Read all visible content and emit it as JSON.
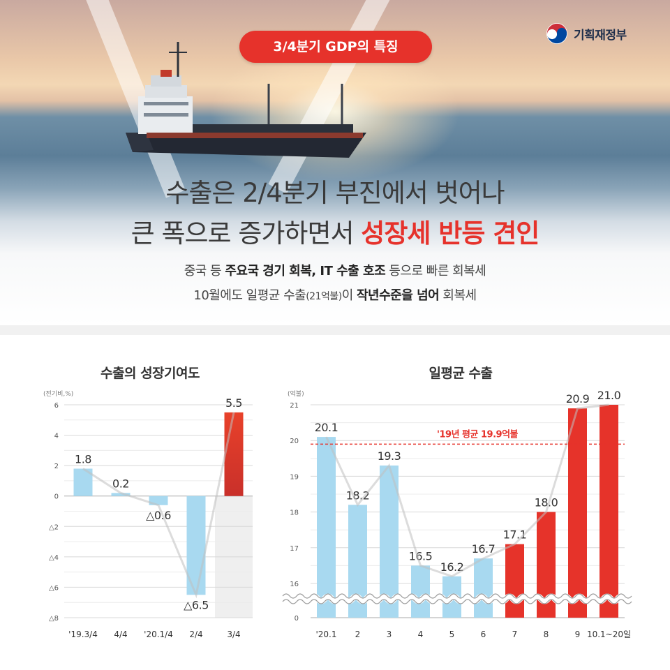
{
  "badge": "3/4분기 GDP의 특징",
  "ministry": {
    "name": "기획재정부",
    "logo_icon": "taegeuk-icon"
  },
  "headline": {
    "line1": "수출은 2/4분기 부진에서 벗어나",
    "line2_plain": "큰 폭으로 증가하면서",
    "line2_highlight": "성장세 반등 견인"
  },
  "sub": {
    "l1_a": "중국 등",
    "l1_b": "주요국 경기 회복, IT 수출 호조",
    "l1_c": "등으로 빠른 회복세",
    "l2_a": "10월에도 일평균 수출",
    "l2_small": "(21억불)",
    "l2_b": "이",
    "l2_bold": "작년수준을 넘어",
    "l2_c": "회복세"
  },
  "colors": {
    "accent_red": "#e6322b",
    "bar_blue": "#a8d9f0",
    "bar_red": "#e6332a",
    "highlight_bg": "#efefef"
  },
  "chart_data": [
    {
      "type": "bar",
      "title": "수출의 성장기여도",
      "unit": "(전기비,%)",
      "categories": [
        "'19.3/4",
        "4/4",
        "'20.1/4",
        "2/4",
        "3/4"
      ],
      "values": [
        1.8,
        0.2,
        -0.6,
        -6.5,
        5.5
      ],
      "value_labels": [
        "1.8",
        "0.2",
        "△0.6",
        "△6.5",
        "5.5"
      ],
      "ylim": [
        -8,
        6
      ],
      "y_ticks": [
        6,
        4,
        2,
        0,
        -2,
        -4,
        -6,
        -8
      ],
      "y_tick_labels": [
        "6",
        "4",
        "2",
        "0",
        "△2",
        "△4",
        "△6",
        "△8"
      ],
      "highlight_category": "3/4",
      "trend_line": true,
      "grid": true
    },
    {
      "type": "bar",
      "title": "일평균 수출",
      "unit": "(억불)",
      "categories": [
        "'20.1",
        "2",
        "3",
        "4",
        "5",
        "6",
        "7",
        "8",
        "9",
        "10.1~20일"
      ],
      "values": [
        20.1,
        18.2,
        19.3,
        16.5,
        16.2,
        16.7,
        17.1,
        18.0,
        20.9,
        21.0
      ],
      "value_labels": [
        "20.1",
        "18.2",
        "19.3",
        "16.5",
        "16.2",
        "16.7",
        "17.1",
        "18.0",
        "20.9",
        "21.0"
      ],
      "red_from_index": 6,
      "y_ticks": [
        21,
        20,
        19,
        18,
        17,
        16,
        0
      ],
      "y_tick_labels": [
        "21",
        "20",
        "19",
        "18",
        "17",
        "16",
        "0"
      ],
      "axis_break": true,
      "reference_line": {
        "value": 19.9,
        "label": "'19년 평균 19.9억불"
      },
      "trend_line": true,
      "grid": true
    }
  ]
}
